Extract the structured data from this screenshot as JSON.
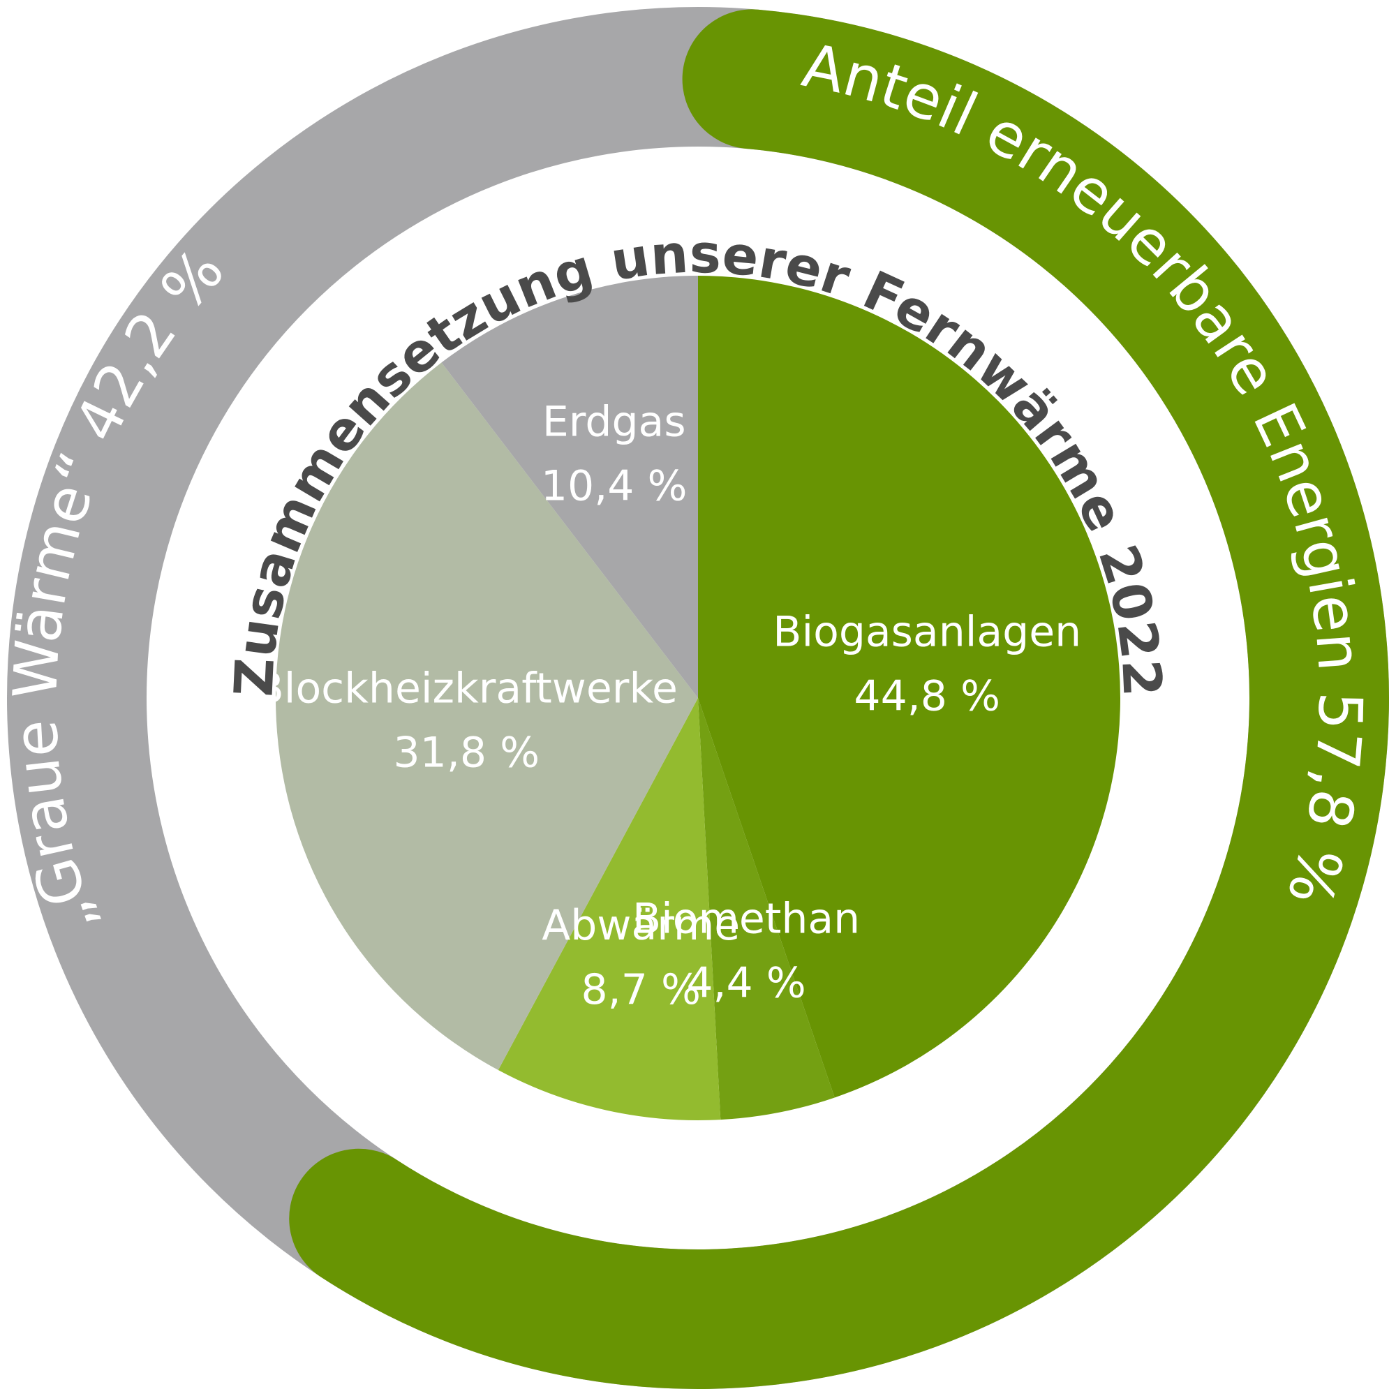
{
  "chart_data": {
    "type": "pie",
    "title": "Zusammensetzung unserer Fernwärme 2022",
    "slices": [
      {
        "name": "Biogasanlagen",
        "value": 44.8,
        "value_label": "44,8 %",
        "color": "#689403"
      },
      {
        "name": "Biomethan",
        "value": 4.4,
        "value_label": "4,4 %",
        "color": "#74a012"
      },
      {
        "name": "Abwärme",
        "value": 8.7,
        "value_label": "8,7 %",
        "color": "#93bb2f"
      },
      {
        "name": "Blockheizkraftwerke",
        "value": 31.8,
        "value_label": "31,8 %",
        "color": "#b2bba5"
      },
      {
        "name": "Erdgas",
        "value": 10.4,
        "value_label": "10,4 %",
        "color": "#a7a7a9"
      }
    ],
    "outer_ring": [
      {
        "label": "Anteil erneuerbare Energien 57,8 %",
        "value": 57.8,
        "color": "#689403"
      },
      {
        "label": "„Graue Wärme“ 42,2 %",
        "value": 42.2,
        "color": "#a7a7a9"
      }
    ]
  }
}
